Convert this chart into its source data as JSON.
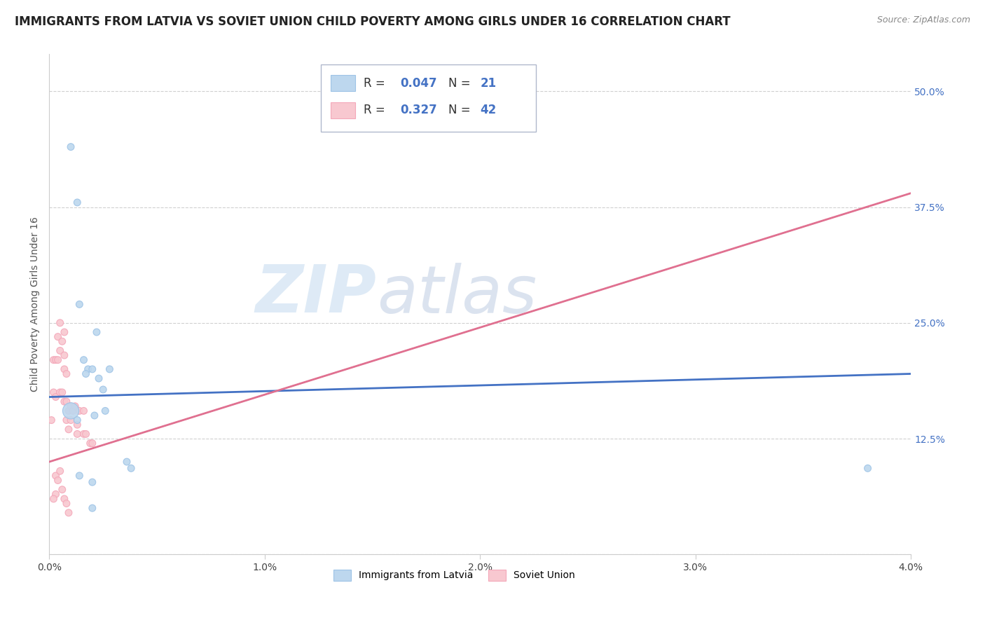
{
  "title": "IMMIGRANTS FROM LATVIA VS SOVIET UNION CHILD POVERTY AMONG GIRLS UNDER 16 CORRELATION CHART",
  "source": "Source: ZipAtlas.com",
  "ylabel": "Child Poverty Among Girls Under 16",
  "xlim": [
    0.0,
    0.04
  ],
  "ylim": [
    0.0,
    0.54
  ],
  "x_ticks": [
    0.0,
    0.01,
    0.02,
    0.03,
    0.04
  ],
  "x_tick_labels": [
    "0.0%",
    "1.0%",
    "2.0%",
    "3.0%",
    "4.0%"
  ],
  "y_ticks": [
    0.0,
    0.125,
    0.25,
    0.375,
    0.5
  ],
  "y_tick_labels": [
    "",
    "12.5%",
    "25.0%",
    "37.5%",
    "50.0%"
  ],
  "legend_items": [
    {
      "label": "Immigrants from Latvia",
      "color": "#bdd7ee",
      "edgecolor": "#9dc3e6",
      "R": "0.047",
      "N": "21"
    },
    {
      "label": "Soviet Union",
      "color": "#f8c8d0",
      "edgecolor": "#f4a7b9",
      "R": "0.327",
      "N": "42"
    }
  ],
  "latvia_scatter": {
    "x": [
      0.001,
      0.0013,
      0.0014,
      0.0016,
      0.0018,
      0.002,
      0.0023,
      0.0025,
      0.0017,
      0.0022,
      0.001,
      0.0028,
      0.0013,
      0.0021,
      0.0036,
      0.0026,
      0.0014,
      0.002,
      0.0038,
      0.002,
      0.038
    ],
    "y": [
      0.44,
      0.38,
      0.27,
      0.21,
      0.2,
      0.2,
      0.19,
      0.178,
      0.195,
      0.24,
      0.155,
      0.2,
      0.145,
      0.15,
      0.1,
      0.155,
      0.085,
      0.078,
      0.093,
      0.05,
      0.093
    ],
    "sizes": [
      50,
      50,
      50,
      50,
      50,
      50,
      50,
      50,
      50,
      50,
      280,
      50,
      50,
      50,
      50,
      50,
      50,
      50,
      50,
      50,
      50
    ]
  },
  "soviet_scatter": {
    "x": [
      0.0001,
      0.0002,
      0.0002,
      0.0003,
      0.0003,
      0.0004,
      0.0004,
      0.0005,
      0.0005,
      0.0005,
      0.0006,
      0.0006,
      0.0007,
      0.0007,
      0.0007,
      0.0007,
      0.0008,
      0.0008,
      0.0008,
      0.0009,
      0.0009,
      0.001,
      0.001,
      0.0011,
      0.0012,
      0.0013,
      0.0013,
      0.0014,
      0.0016,
      0.0016,
      0.0017,
      0.0019,
      0.002,
      0.0003,
      0.0003,
      0.0004,
      0.0005,
      0.0002,
      0.0006,
      0.0007,
      0.0008,
      0.0009
    ],
    "y": [
      0.145,
      0.21,
      0.175,
      0.17,
      0.21,
      0.235,
      0.21,
      0.25,
      0.22,
      0.175,
      0.23,
      0.175,
      0.24,
      0.215,
      0.2,
      0.165,
      0.165,
      0.195,
      0.145,
      0.155,
      0.135,
      0.16,
      0.145,
      0.155,
      0.16,
      0.14,
      0.13,
      0.155,
      0.13,
      0.155,
      0.13,
      0.12,
      0.12,
      0.085,
      0.065,
      0.08,
      0.09,
      0.06,
      0.07,
      0.06,
      0.055,
      0.045
    ],
    "sizes": [
      50,
      50,
      50,
      50,
      50,
      50,
      50,
      50,
      50,
      50,
      50,
      50,
      50,
      50,
      50,
      50,
      50,
      50,
      50,
      50,
      50,
      50,
      50,
      50,
      50,
      50,
      50,
      50,
      50,
      50,
      50,
      50,
      50,
      50,
      50,
      50,
      50,
      50,
      50,
      50,
      50,
      50
    ]
  },
  "latvia_trend": {
    "x": [
      0.0,
      0.04
    ],
    "y": [
      0.17,
      0.195
    ],
    "color": "#4472c4",
    "linewidth": 2.0
  },
  "soviet_trend": {
    "x": [
      0.0,
      0.04
    ],
    "y": [
      0.1,
      0.39
    ],
    "color": "#e07090",
    "linewidth": 2.0
  },
  "soviet_dashed": {
    "x": [
      0.0,
      0.04
    ],
    "y": [
      0.1,
      0.39
    ],
    "color": "#d4a0b0",
    "linewidth": 1.2,
    "linestyle": "--"
  },
  "watermark_text": "ZIP",
  "watermark_text2": "atlas",
  "background_color": "#ffffff",
  "grid_color": "#d0d0d0",
  "title_fontsize": 12,
  "axis_label_fontsize": 10,
  "tick_fontsize": 10,
  "tick_color_right": "#4472c4",
  "source_color": "#888888"
}
